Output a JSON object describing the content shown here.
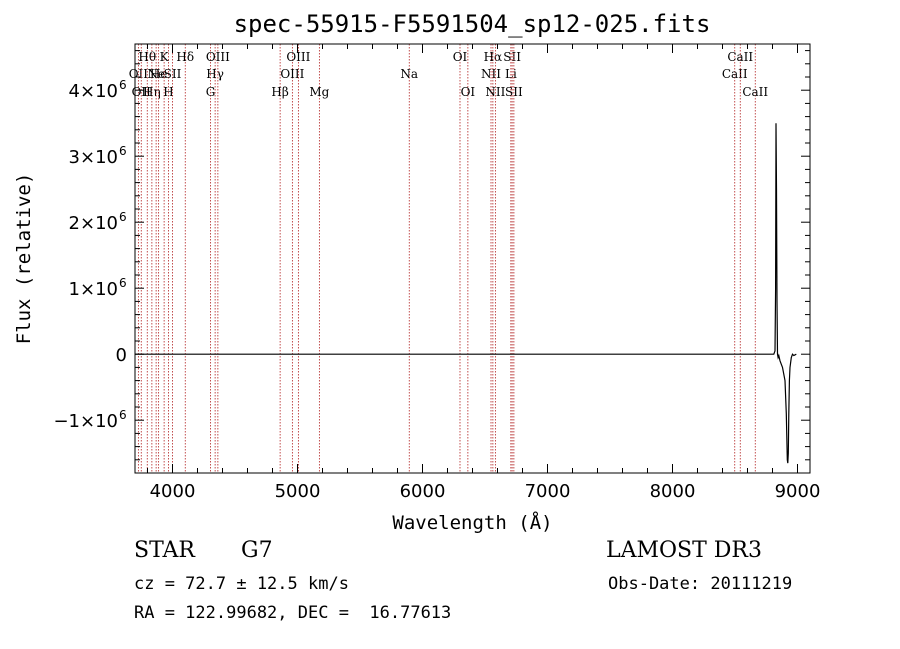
{
  "chart_data": {
    "type": "line",
    "title": "spec-55915-F5591504_sp12-025.fits",
    "xlabel": "Wavelength (Å)",
    "ylabel": "Flux (relative)",
    "xlim": [
      3700,
      9100
    ],
    "ylim": [
      -1800000,
      4700000
    ],
    "x_ticks": [
      {
        "value": 4000,
        "label": "4000"
      },
      {
        "value": 5000,
        "label": "5000"
      },
      {
        "value": 6000,
        "label": "6000"
      },
      {
        "value": 7000,
        "label": "7000"
      },
      {
        "value": 8000,
        "label": "8000"
      },
      {
        "value": 9000,
        "label": "9000"
      }
    ],
    "y_ticks": [
      {
        "value": -1000000,
        "label": "−1×10",
        "exp": "6"
      },
      {
        "value": 0,
        "label": "0",
        "exp": ""
      },
      {
        "value": 1000000,
        "label": "1×10",
        "exp": "6"
      },
      {
        "value": 2000000,
        "label": "2×10",
        "exp": "6"
      },
      {
        "value": 3000000,
        "label": "3×10",
        "exp": "6"
      },
      {
        "value": 4000000,
        "label": "4×10",
        "exp": "6"
      }
    ],
    "grid": false,
    "series": [
      {
        "color": "#000000",
        "x": [
          3700,
          8500,
          8800,
          8810,
          8820,
          8825,
          8828,
          8832,
          8836,
          8840,
          8845,
          8850,
          8860,
          8880,
          8900,
          8910,
          8918,
          8922,
          8926,
          8930,
          8935,
          8940,
          8950,
          8960,
          8970,
          8990
        ],
        "y": [
          0,
          0,
          0,
          0,
          50000,
          1000000,
          3500000,
          2500000,
          800000,
          0,
          -50000,
          -20000,
          -100000,
          -200000,
          -400000,
          -900000,
          -1600000,
          -1650000,
          -1500000,
          -900000,
          -400000,
          -200000,
          -50000,
          0,
          -20000,
          0
        ]
      }
    ],
    "line_marker_color": "#b22222",
    "line_markers": [
      {
        "x": 3727,
        "label": "OII",
        "row": 2
      },
      {
        "x": 3750,
        "label": "OII",
        "row": 3
      },
      {
        "x": 3798,
        "label": "Hθ",
        "row": 1
      },
      {
        "x": 3835,
        "label": "Hη",
        "row": 3
      },
      {
        "x": 3869,
        "label": "Ne",
        "row": 2
      },
      {
        "x": 3889,
        "label": "He",
        "row": 2
      },
      {
        "x": 3933,
        "label": "K",
        "row": 1
      },
      {
        "x": 3968,
        "label": "H",
        "row": 3
      },
      {
        "x": 4000,
        "label": "SII",
        "row": 2
      },
      {
        "x": 4102,
        "label": "Hδ",
        "row": 1
      },
      {
        "x": 4304,
        "label": "G",
        "row": 3
      },
      {
        "x": 4341,
        "label": "Hγ",
        "row": 2
      },
      {
        "x": 4363,
        "label": "OIII",
        "row": 1
      },
      {
        "x": 4861,
        "label": "Hβ",
        "row": 3
      },
      {
        "x": 4959,
        "label": "OIII",
        "row": 2
      },
      {
        "x": 5007,
        "label": "OIII",
        "row": 1
      },
      {
        "x": 5175,
        "label": "Mg",
        "row": 3
      },
      {
        "x": 5894,
        "label": "Na",
        "row": 2
      },
      {
        "x": 6300,
        "label": "OI",
        "row": 1
      },
      {
        "x": 6363,
        "label": "OI",
        "row": 3
      },
      {
        "x": 6548,
        "label": "NII",
        "row": 2
      },
      {
        "x": 6563,
        "label": "Hα",
        "row": 1
      },
      {
        "x": 6583,
        "label": "NII",
        "row": 3
      },
      {
        "x": 6707,
        "label": "Li",
        "row": 2
      },
      {
        "x": 6717,
        "label": "SII",
        "row": 1
      },
      {
        "x": 6731,
        "label": "SII",
        "row": 3
      },
      {
        "x": 8498,
        "label": "CaII",
        "row": 2
      },
      {
        "x": 8542,
        "label": "CaII",
        "row": 1
      },
      {
        "x": 8662,
        "label": "CaII",
        "row": 3
      }
    ]
  },
  "info": {
    "object_class": "STAR",
    "subclass": "G7",
    "survey": "LAMOST DR3",
    "cz": "cz = 72.7 ± 12.5 km/s",
    "obs_date": "Obs-Date: 20111219",
    "coords": "RA = 122.99682, DEC =  16.77613"
  }
}
